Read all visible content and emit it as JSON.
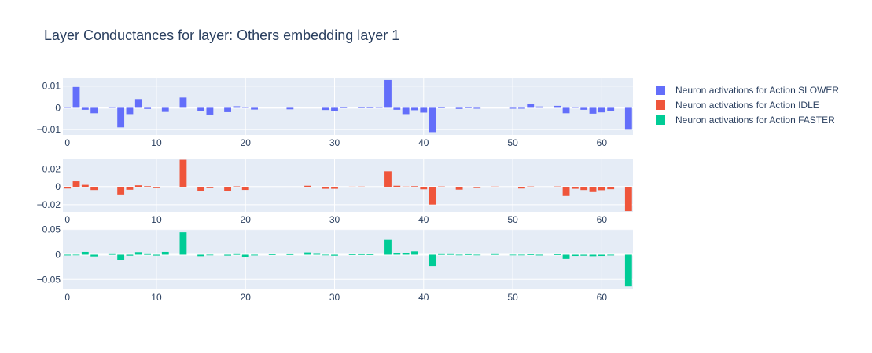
{
  "chart_data": {
    "type": "bar",
    "title": "Layer Conductances for layer: Others embedding layer 1",
    "legend_position": "top-right",
    "x_ticks": [
      0,
      10,
      20,
      30,
      40,
      50,
      60
    ],
    "x_range": [
      -0.5,
      63.5
    ],
    "grid": true,
    "panels": [
      {
        "name": "Neuron activations for Action SLOWER",
        "color": "#636efa",
        "ylim": [
          -0.0125,
          0.0135
        ],
        "y_ticks": [
          0.01,
          0,
          -0.01
        ],
        "y_tick_labels": [
          "0.01",
          "0",
          "−0.01"
        ],
        "values": [
          0.0003,
          0.0096,
          -0.0009,
          -0.0025,
          0,
          0.0005,
          -0.009,
          -0.0029,
          0.004,
          -0.0005,
          0,
          -0.0019,
          0,
          0.0047,
          0,
          -0.0015,
          -0.0031,
          0,
          -0.002,
          0.0007,
          0.0004,
          -0.0008,
          0,
          0,
          0,
          -0.0007,
          0,
          0,
          0,
          -0.001,
          -0.0014,
          0.0002,
          0,
          0.0002,
          0.0002,
          0.0003,
          0.0128,
          -0.0009,
          -0.0029,
          -0.0011,
          -0.0022,
          -0.0112,
          0.0002,
          0,
          -0.0005,
          0.0002,
          -0.0004,
          0,
          0,
          0,
          -0.0004,
          -0.0004,
          0.0016,
          0.0006,
          0,
          0.0009,
          -0.0025,
          0.0003,
          -0.0009,
          -0.0027,
          -0.0021,
          -0.0013,
          0,
          -0.0101
        ]
      },
      {
        "name": "Neuron activations for Action IDLE",
        "color": "#ef553b",
        "ylim": [
          -0.028,
          0.031
        ],
        "y_ticks": [
          0.02,
          0,
          -0.02
        ],
        "y_tick_labels": [
          "0.02",
          "0",
          "−0.02"
        ],
        "values": [
          -0.0018,
          0.0063,
          0.0023,
          -0.0035,
          0,
          -0.0005,
          -0.0085,
          -0.0032,
          0.0018,
          0.0008,
          -0.0014,
          -0.0004,
          0,
          0.0305,
          0,
          -0.0045,
          -0.0014,
          0,
          -0.0043,
          0.0006,
          -0.0034,
          0,
          0,
          -0.0005,
          0,
          -0.0004,
          0,
          0.0013,
          0,
          -0.0021,
          -0.0021,
          0,
          0.0003,
          0.0004,
          0,
          0,
          0.0175,
          0.0013,
          0.0004,
          0.0008,
          -0.0027,
          -0.0198,
          0.0005,
          0,
          -0.0031,
          0.0002,
          -0.0013,
          0,
          0.0004,
          0,
          -0.0004,
          -0.0018,
          0.0005,
          -0.0007,
          0,
          0.0005,
          -0.0102,
          -0.0021,
          -0.0035,
          -0.0058,
          -0.0037,
          -0.0026,
          0,
          -0.0272
        ]
      },
      {
        "name": "Neuron activations for Action FASTER",
        "color": "#00cc96",
        "ylim": [
          -0.07,
          0.051
        ],
        "y_ticks": [
          0.05,
          0,
          -0.05
        ],
        "y_tick_labels": [
          "0.05",
          "0",
          "−0.05"
        ],
        "values": [
          -0.0015,
          -0.001,
          0.0055,
          -0.0035,
          0,
          0.001,
          -0.011,
          -0.002,
          0.005,
          0.001,
          -0.0018,
          0.0055,
          0,
          0.0445,
          0,
          -0.003,
          -0.0012,
          0,
          -0.0018,
          0.001,
          -0.0055,
          -0.0015,
          0,
          0.0005,
          0,
          0.0008,
          0,
          0.0045,
          0.0015,
          -0.0012,
          -0.002,
          0,
          0.0005,
          0.0008,
          0.0005,
          0,
          0.0295,
          0.0035,
          0.0028,
          0.0065,
          0,
          -0.023,
          0.001,
          0.001,
          -0.0008,
          0.0008,
          -0.0007,
          0,
          0.001,
          0,
          -0.0005,
          -0.0007,
          0.0004,
          -0.0015,
          0,
          0.0005,
          -0.0085,
          -0.0025,
          -0.002,
          -0.003,
          -0.0025,
          -0.0015,
          0,
          -0.064
        ]
      }
    ]
  }
}
